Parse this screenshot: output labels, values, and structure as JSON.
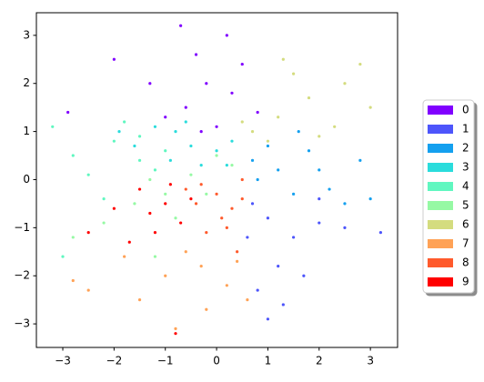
{
  "chart_data": {
    "type": "scatter",
    "xlim": [
      -3.515,
      3.53
    ],
    "ylim": [
      -3.49,
      3.47
    ],
    "xticks": [
      {
        "value": -3,
        "label": "−3"
      },
      {
        "value": -2,
        "label": "−2"
      },
      {
        "value": -1,
        "label": "−1"
      },
      0,
      1,
      2,
      3
    ],
    "yticks": [
      {
        "value": -3,
        "label": "−3"
      },
      {
        "value": -2,
        "label": "−2"
      },
      {
        "value": -1,
        "label": "−1"
      },
      0,
      1,
      2,
      3
    ],
    "legend": "right",
    "series": [
      {
        "name": "0",
        "color": "#8000ff",
        "x": [
          -0.6,
          -0.2,
          0.3,
          -1.0,
          -0.4,
          0.5,
          -1.3,
          0.0,
          -0.7,
          -2.0,
          0.8,
          -0.3,
          -2.9,
          0.2
        ],
        "values": [
          1.5,
          2.0,
          1.8,
          1.3,
          2.6,
          2.4,
          2.0,
          1.1,
          3.2,
          2.5,
          1.4,
          1.0,
          1.4,
          3.0
        ]
      },
      {
        "name": "1",
        "color": "#4d55fb",
        "x": [
          1.0,
          1.5,
          0.7,
          1.2,
          2.0,
          0.8,
          1.7,
          2.5,
          3.2,
          1.3,
          0.6,
          2.0,
          1.0
        ],
        "values": [
          -0.8,
          -1.2,
          -0.5,
          -1.8,
          -0.9,
          -2.3,
          -2.0,
          -1.0,
          -1.1,
          -2.6,
          -1.2,
          -0.4,
          -2.9
        ]
      },
      {
        "name": "2",
        "color": "#14a0ef",
        "x": [
          1.2,
          1.8,
          0.8,
          2.2,
          1.5,
          2.8,
          1.0,
          2.5,
          1.6,
          3.0,
          0.7,
          2.0
        ],
        "values": [
          0.2,
          0.6,
          0.0,
          -0.2,
          -0.3,
          0.4,
          0.7,
          -0.5,
          1.0,
          -0.4,
          0.4,
          0.2
        ]
      },
      {
        "name": "3",
        "color": "#2adcdc",
        "x": [
          -0.5,
          -0.8,
          0.0,
          -1.2,
          -0.3,
          0.3,
          -0.9,
          -1.6,
          0.2,
          -0.6,
          -1.9
        ],
        "values": [
          0.7,
          1.0,
          0.6,
          1.1,
          0.3,
          0.8,
          0.4,
          0.7,
          0.3,
          1.2,
          1.0
        ]
      },
      {
        "name": "4",
        "color": "#60f7c0",
        "x": [
          -1.5,
          -2.0,
          -1.2,
          -2.5,
          -1.8,
          -1.0,
          -2.8,
          -3.2,
          -2.2,
          -3.0,
          -1.5
        ],
        "values": [
          0.4,
          0.8,
          0.2,
          0.1,
          1.2,
          0.6,
          0.5,
          1.1,
          -0.4,
          -1.6,
          0.9
        ]
      },
      {
        "name": "5",
        "color": "#96f9a4",
        "x": [
          -1.0,
          -0.5,
          -1.6,
          -0.2,
          -2.2,
          -0.8,
          -1.3,
          0.3,
          -2.8,
          -1.2,
          0.0
        ],
        "values": [
          -0.3,
          0.1,
          -0.5,
          -0.3,
          -0.9,
          -0.8,
          0.0,
          0.3,
          -1.2,
          -1.6,
          0.5
        ]
      },
      {
        "name": "6",
        "color": "#d4dc7f",
        "x": [
          1.2,
          1.8,
          2.3,
          1.0,
          1.5,
          2.5,
          0.7,
          2.0,
          3.0,
          1.3,
          2.8,
          0.5
        ],
        "values": [
          1.3,
          1.7,
          1.1,
          0.8,
          2.2,
          2.0,
          1.0,
          0.9,
          1.5,
          2.5,
          2.4,
          1.2
        ]
      },
      {
        "name": "7",
        "color": "#ffa256",
        "x": [
          -0.3,
          0.2,
          -1.0,
          -0.6,
          0.4,
          -1.5,
          -0.2,
          -1.8,
          0.6,
          -2.5,
          -0.8,
          -2.8
        ],
        "values": [
          -1.8,
          -2.2,
          -2.0,
          -1.5,
          -1.7,
          -2.5,
          -2.7,
          -1.6,
          -2.5,
          -2.3,
          -3.1,
          -2.1
        ]
      },
      {
        "name": "8",
        "color": "#ff5a2c",
        "x": [
          0.0,
          0.3,
          -0.3,
          0.2,
          -0.4,
          0.5,
          0.1,
          -0.2,
          0.4,
          -0.6,
          0.5
        ],
        "values": [
          -0.3,
          -0.6,
          -0.1,
          -1.0,
          -0.5,
          0.0,
          -0.8,
          -1.1,
          -1.5,
          -0.2,
          -0.4
        ]
      },
      {
        "name": "9",
        "color": "#ff0000",
        "x": [
          -1.0,
          -1.5,
          -0.7,
          -1.2,
          -2.0,
          -0.5,
          -1.7,
          -0.9,
          -2.5,
          -1.3,
          -0.8
        ],
        "values": [
          -0.5,
          -0.2,
          -0.9,
          -1.1,
          -0.6,
          -0.4,
          -1.3,
          -0.1,
          -1.1,
          -0.7,
          -3.2
        ]
      }
    ]
  }
}
